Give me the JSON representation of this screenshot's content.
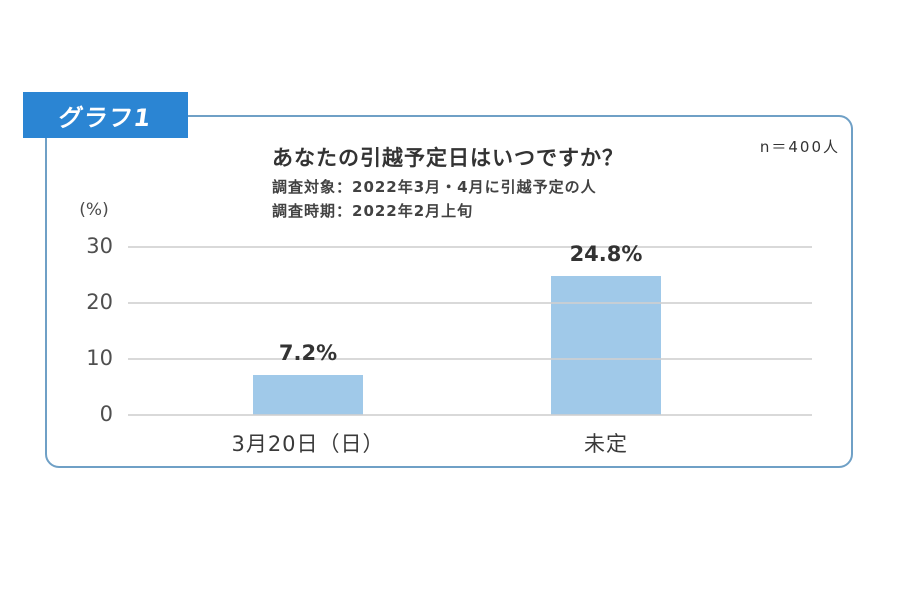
{
  "badge": {
    "label": "グラフ1",
    "bg_color": "#2b85d3",
    "text_color": "#ffffff"
  },
  "panel": {
    "border_color": "#6fa0c6",
    "sample_size": "n＝400人"
  },
  "header": {
    "title": "あなたの引越予定日はいつですか？",
    "subtitle1": "調査対象：2022年3月・4月に引越予定の人",
    "subtitle2": "調査時期：2022年2月上旬"
  },
  "chart_data": {
    "type": "bar",
    "title": "あなたの引越予定日はいつですか？",
    "subtitle": [
      "調査対象：2022年3月・4月に引越予定の人",
      "調査時期：2022年2月上旬"
    ],
    "annotation": "n＝400人",
    "categories": [
      "3月20日（日）",
      "未定"
    ],
    "values": [
      7.2,
      24.8
    ],
    "value_labels": [
      "7.2%",
      "24.8%"
    ],
    "xlabel": "",
    "ylabel": "(%)",
    "yticks": [
      0,
      10,
      20,
      30
    ],
    "ylim": [
      0,
      32
    ],
    "grid": true,
    "legend": false,
    "bar_color": "#a0c9e9",
    "grid_color": "#cfcfcf"
  }
}
